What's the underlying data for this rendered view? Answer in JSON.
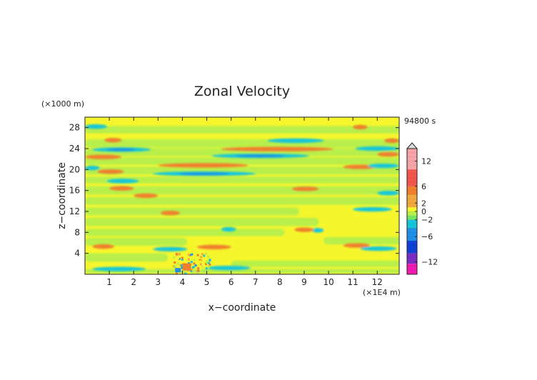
{
  "chart_data": {
    "type": "heatmap",
    "title": "Zonal Velocity",
    "time_label": "94800 s",
    "xlabel": "x−coordinate",
    "ylabel": "z−coordinate",
    "x_unit": "(×1E4 m)",
    "y_unit": "(×1000 m)",
    "xlim": [
      0,
      12.9
    ],
    "ylim": [
      0,
      30
    ],
    "x_ticks": [
      1,
      2,
      3,
      4,
      5,
      6,
      7,
      8,
      9,
      10,
      11,
      12
    ],
    "y_ticks": [
      4,
      8,
      12,
      16,
      20,
      24,
      28
    ],
    "x_tick_labels": [
      "1",
      "2",
      "3",
      "4",
      "5",
      "6",
      "7",
      "8",
      "9",
      "10",
      "11",
      "12"
    ],
    "y_tick_labels": [
      "4",
      "8",
      "12",
      "16",
      "20",
      "24",
      "28"
    ],
    "colorbar": {
      "range": [
        -15,
        15
      ],
      "ticks": [
        12,
        6,
        2,
        0,
        -2,
        -6,
        -12
      ],
      "tick_labels": [
        "12",
        "6",
        "2",
        "0",
        "−2",
        "−6",
        "−12"
      ],
      "colors": {
        "very_high": "#f7a4a6",
        "high": "#f2564e",
        "mid_high": "#ef7f2d",
        "pos": "#f3a83d",
        "small_pos": "#f6f62c",
        "zero": "#b8ef4c",
        "small_neg": "#74e65e",
        "neg": "#15c6d8",
        "mid_neg": "#1e8ee6",
        "strong_neg": "#1040d8",
        "very_neg": "#7a2cc4",
        "extreme_neg": "#f21ab1"
      }
    },
    "bands": [
      {
        "z": 1.0,
        "x_start": 0.3,
        "x_end": 2.5,
        "sign": "neg"
      },
      {
        "z": 1.2,
        "x_start": 5.0,
        "x_end": 6.8,
        "sign": "neg"
      },
      {
        "z": 5.3,
        "x_start": 0.3,
        "x_end": 1.2,
        "sign": "pos"
      },
      {
        "z": 4.8,
        "x_start": 2.8,
        "x_end": 4.2,
        "sign": "neg"
      },
      {
        "z": 5.2,
        "x_start": 4.6,
        "x_end": 6.0,
        "sign": "pos"
      },
      {
        "z": 4.9,
        "x_start": 11.3,
        "x_end": 12.8,
        "sign": "neg"
      },
      {
        "z": 5.5,
        "x_start": 10.6,
        "x_end": 11.7,
        "sign": "pos"
      },
      {
        "z": 8.4,
        "x_start": 9.3,
        "x_end": 9.8,
        "sign": "neg"
      },
      {
        "z": 8.5,
        "x_start": 8.6,
        "x_end": 9.4,
        "sign": "pos"
      },
      {
        "z": 8.6,
        "x_start": 5.6,
        "x_end": 6.2,
        "sign": "neg"
      },
      {
        "z": 11.7,
        "x_start": 3.1,
        "x_end": 3.9,
        "sign": "pos"
      },
      {
        "z": 12.4,
        "x_start": 11.0,
        "x_end": 12.6,
        "sign": "neg"
      },
      {
        "z": 15.0,
        "x_start": 2.0,
        "x_end": 3.0,
        "sign": "pos"
      },
      {
        "z": 15.5,
        "x_start": 12.0,
        "x_end": 12.9,
        "sign": "neg"
      },
      {
        "z": 16.3,
        "x_start": 8.5,
        "x_end": 9.6,
        "sign": "pos"
      },
      {
        "z": 16.4,
        "x_start": 1.0,
        "x_end": 2.0,
        "sign": "pos"
      },
      {
        "z": 17.8,
        "x_start": 0.9,
        "x_end": 2.2,
        "sign": "neg"
      },
      {
        "z": 19.2,
        "x_start": 2.8,
        "x_end": 7.0,
        "sign": "neg"
      },
      {
        "z": 19.6,
        "x_start": 0.5,
        "x_end": 1.6,
        "sign": "pos"
      },
      {
        "z": 20.5,
        "x_start": 10.6,
        "x_end": 12.0,
        "sign": "pos"
      },
      {
        "z": 20.3,
        "x_start": 0.0,
        "x_end": 0.6,
        "sign": "neg"
      },
      {
        "z": 20.7,
        "x_start": 11.6,
        "x_end": 12.9,
        "sign": "neg"
      },
      {
        "z": 20.8,
        "x_start": 3.0,
        "x_end": 6.7,
        "sign": "pos"
      },
      {
        "z": 22.4,
        "x_start": 0.0,
        "x_end": 1.5,
        "sign": "pos"
      },
      {
        "z": 22.6,
        "x_start": 5.2,
        "x_end": 9.2,
        "sign": "neg"
      },
      {
        "z": 22.9,
        "x_start": 12.0,
        "x_end": 12.9,
        "sign": "pos"
      },
      {
        "z": 23.9,
        "x_start": 5.6,
        "x_end": 10.2,
        "sign": "pos"
      },
      {
        "z": 23.8,
        "x_start": 0.3,
        "x_end": 2.7,
        "sign": "neg"
      },
      {
        "z": 24.0,
        "x_start": 11.1,
        "x_end": 12.9,
        "sign": "neg"
      },
      {
        "z": 25.5,
        "x_start": 7.5,
        "x_end": 9.8,
        "sign": "neg"
      },
      {
        "z": 25.6,
        "x_start": 0.8,
        "x_end": 1.5,
        "sign": "pos"
      },
      {
        "z": 25.5,
        "x_start": 12.3,
        "x_end": 12.9,
        "sign": "pos"
      },
      {
        "z": 28.1,
        "x_start": 11.0,
        "x_end": 11.6,
        "sign": "pos"
      },
      {
        "z": 28.2,
        "x_start": 0.0,
        "x_end": 0.9,
        "sign": "neg"
      }
    ]
  }
}
